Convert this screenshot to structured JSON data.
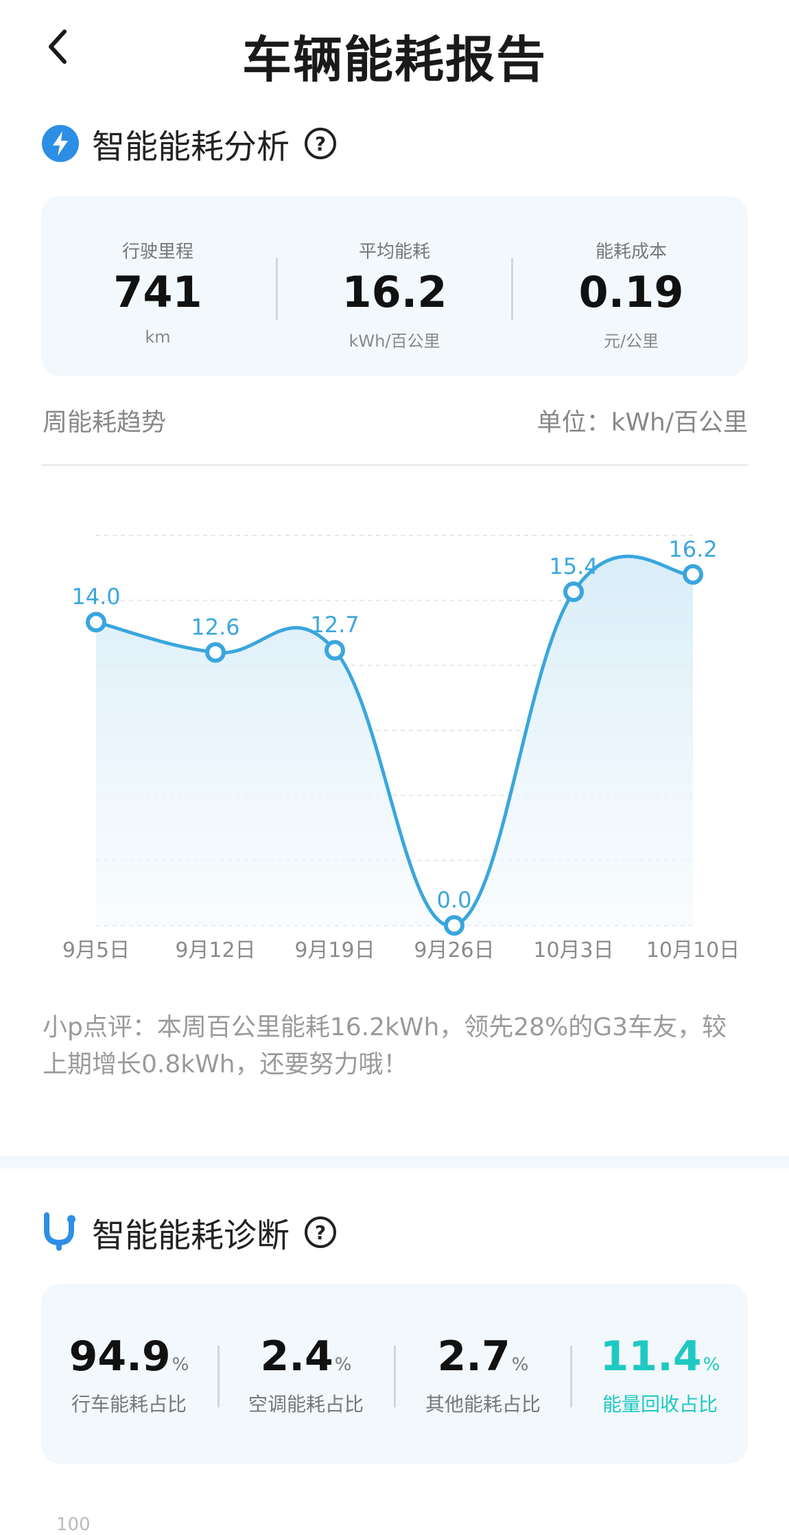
{
  "header": {
    "title": "车辆能耗报告"
  },
  "analysis": {
    "title": "智能能耗分析",
    "stats": [
      {
        "label": "行驶里程",
        "value": "741",
        "unit": "km"
      },
      {
        "label": "平均能耗",
        "value": "16.2",
        "unit": "kWh/百公里"
      },
      {
        "label": "能耗成本",
        "value": "0.19",
        "unit": "元/公里"
      }
    ],
    "trend_title": "周能耗趋势",
    "trend_unit": "单位：kWh/百公里",
    "comment": "小p点评：本周百公里能耗16.2kWh，领先28%的G3车友，较上期增长0.8kWh，还要努力哦！"
  },
  "chart_data": {
    "type": "area",
    "categories": [
      "9月5日",
      "9月12日",
      "9月19日",
      "9月26日",
      "10月3日",
      "10月10日"
    ],
    "values": [
      14.0,
      12.6,
      12.7,
      0.0,
      15.4,
      16.2
    ],
    "value_labels": [
      "14.0",
      "12.6",
      "12.7",
      "0.0",
      "15.4",
      "16.2"
    ],
    "ylim": [
      0,
      18
    ],
    "grid": true,
    "color": "#3aa6dd"
  },
  "diagnosis": {
    "title": "智能能耗诊断",
    "ratios": [
      {
        "value": "94.9",
        "pct": "%",
        "label": "行车能耗占比"
      },
      {
        "value": "2.4",
        "pct": "%",
        "label": "空调能耗占比"
      },
      {
        "value": "2.7",
        "pct": "%",
        "label": "其他能耗占比"
      },
      {
        "value": "11.4",
        "pct": "%",
        "label": "能量回收占比"
      }
    ],
    "accent_color": "#1ec9c2",
    "next_axis_tick": "100"
  }
}
